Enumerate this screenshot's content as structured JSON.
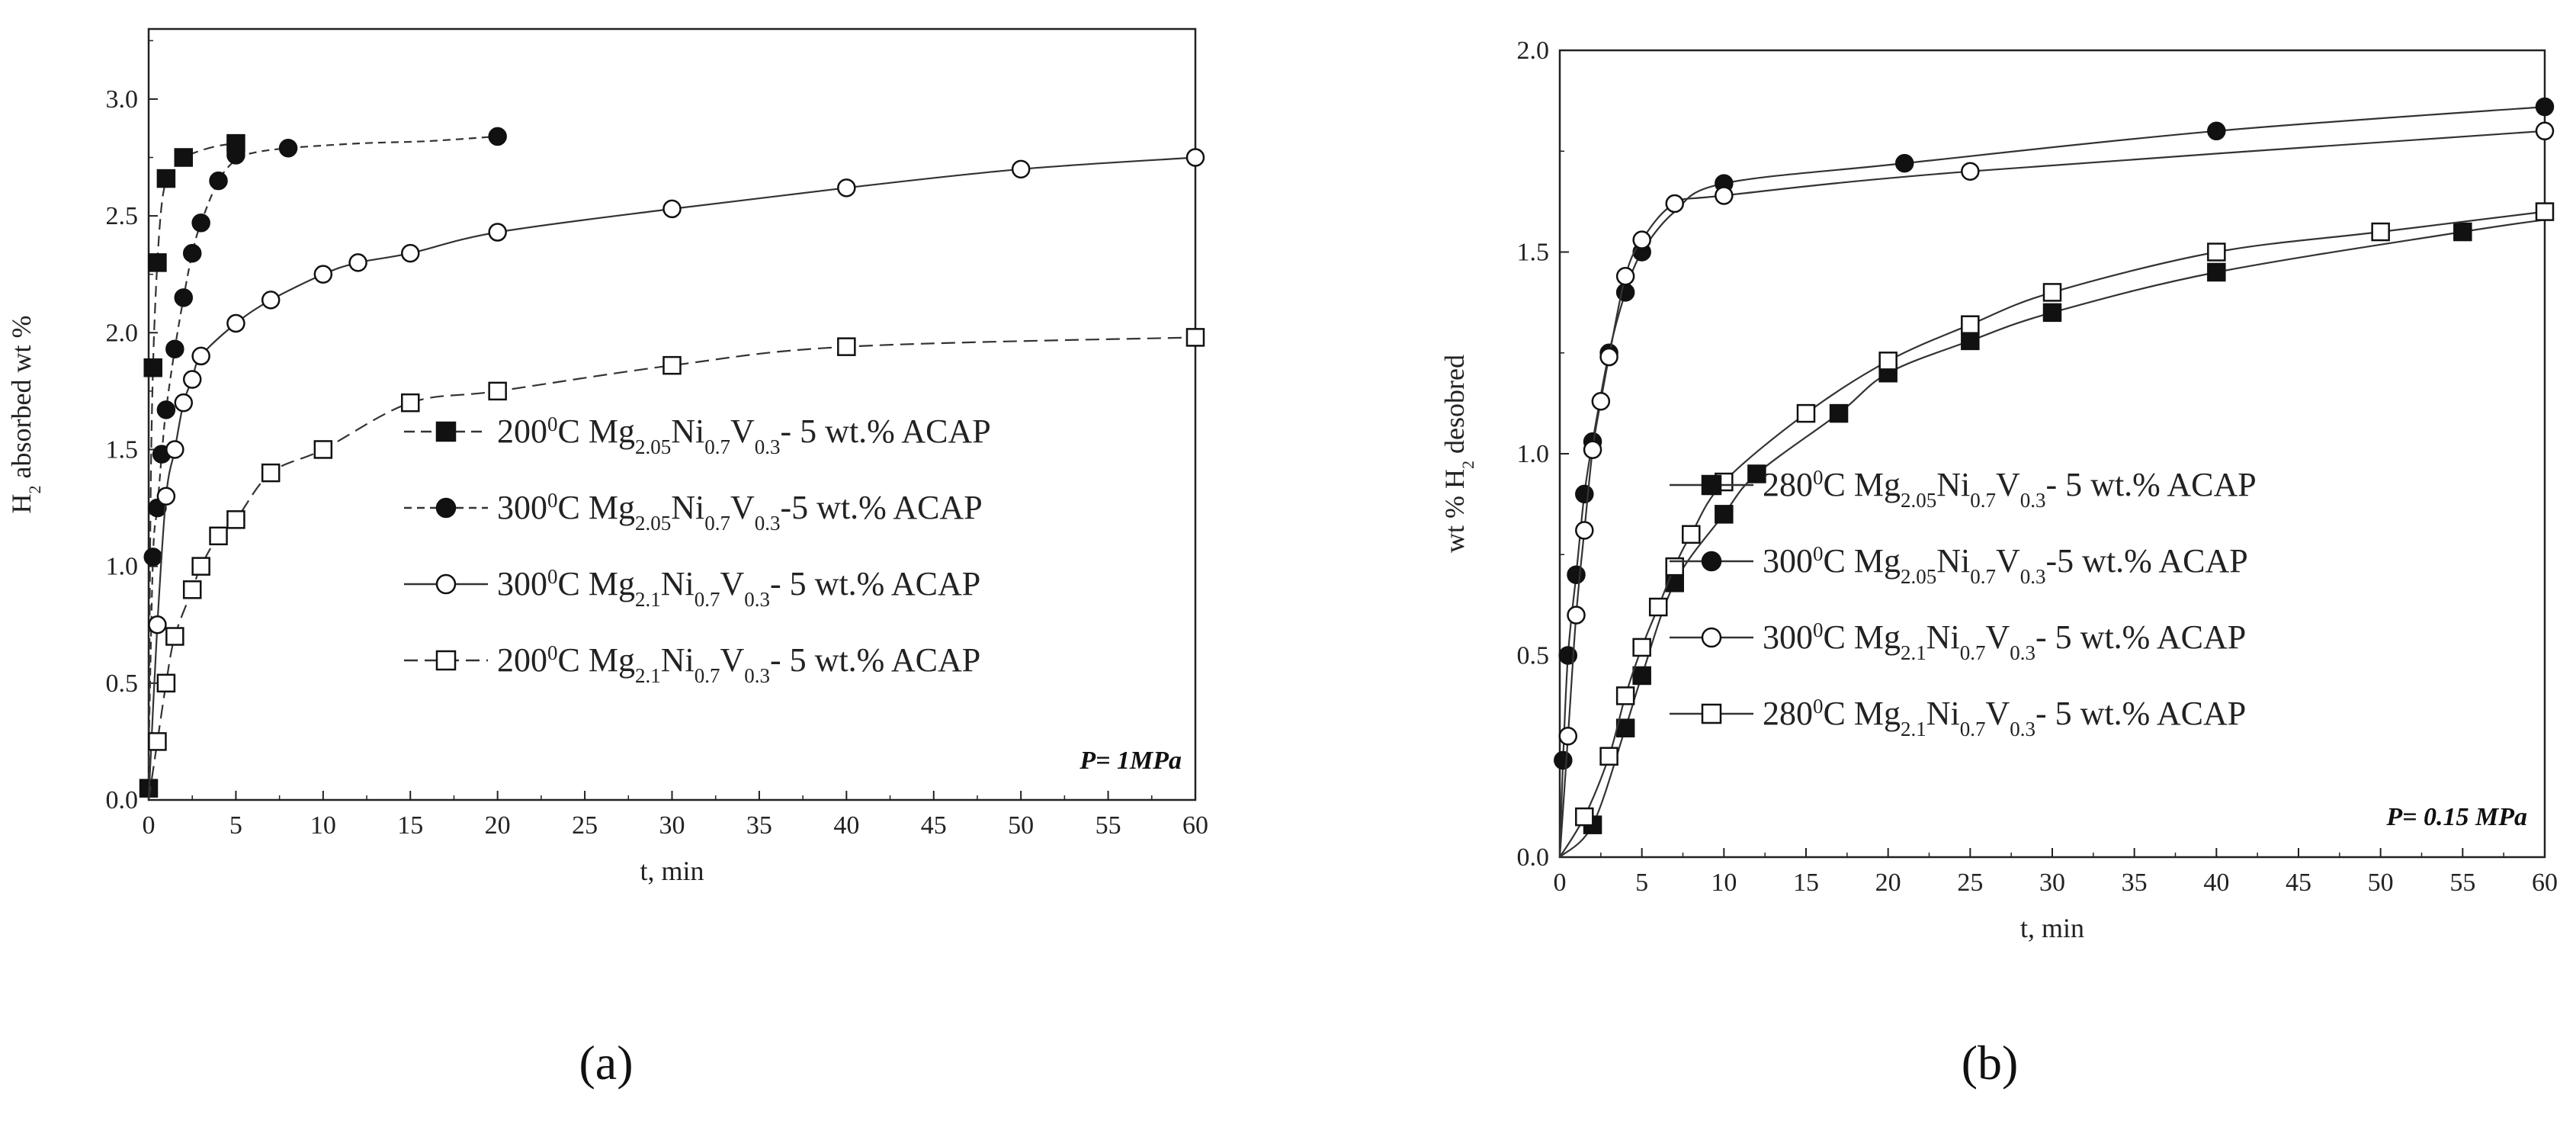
{
  "chart_data": [
    {
      "type": "line",
      "panel_label": "(a)",
      "xlabel": "t, min",
      "ylabel": "H2 absorbed wt %",
      "ylabel_parts": [
        {
          "t": "H",
          "s": "n"
        },
        {
          "t": "2",
          "s": "sub"
        },
        {
          "t": " absorbed wt %",
          "s": "n"
        }
      ],
      "xlim": [
        0,
        60
      ],
      "ylim": [
        0,
        3.3
      ],
      "xticks": [
        "0",
        "5",
        "10",
        "15",
        "20",
        "25",
        "30",
        "35",
        "40",
        "45",
        "50",
        "55",
        "60"
      ],
      "yticks": [
        "0.0",
        "0.5",
        "1.0",
        "1.5",
        "2.0",
        "2.5",
        "3.0"
      ],
      "annotation": "P= 1MPa",
      "legend_position": "center-right",
      "series": [
        {
          "name": "200⁰C Mg2.05Ni0.7V0.3- 5 wt.% ACAP",
          "label_parts": [
            {
              "t": "200",
              "s": "n"
            },
            {
              "t": "0",
              "s": "sup"
            },
            {
              "t": "C Mg",
              "s": "n"
            },
            {
              "t": "2.05",
              "s": "sub"
            },
            {
              "t": "Ni",
              "s": "n"
            },
            {
              "t": "0.7",
              "s": "sub"
            },
            {
              "t": "V",
              "s": "n"
            },
            {
              "t": "0.3",
              "s": "sub"
            },
            {
              "t": "- 5 wt.% ACAP",
              "s": "n"
            }
          ],
          "marker": "filled-square",
          "dash": "14,8",
          "x": [
            0,
            0.25,
            0.5,
            1,
            2,
            5
          ],
          "y": [
            0.05,
            1.85,
            2.3,
            2.66,
            2.75,
            2.81
          ],
          "curve_x": [
            0,
            0.1,
            0.25,
            0.5,
            0.8,
            1.2,
            1.6,
            2,
            3,
            4,
            5
          ],
          "curve_y": [
            0,
            1.2,
            1.85,
            2.3,
            2.58,
            2.68,
            2.72,
            2.75,
            2.78,
            2.8,
            2.81
          ]
        },
        {
          "name": "300⁰C Mg2.05Ni0.7V0.3-5 wt.% ACAP",
          "label_parts": [
            {
              "t": "300",
              "s": "n"
            },
            {
              "t": "0",
              "s": "sup"
            },
            {
              "t": "C Mg",
              "s": "n"
            },
            {
              "t": "2.05",
              "s": "sub"
            },
            {
              "t": "Ni",
              "s": "n"
            },
            {
              "t": "0.7",
              "s": "sub"
            },
            {
              "t": "V",
              "s": "n"
            },
            {
              "t": "0.3",
              "s": "sub"
            },
            {
              "t": "-5 wt.% ACAP",
              "s": "n"
            }
          ],
          "marker": "filled-circle",
          "dash": "10,7",
          "x": [
            0.25,
            0.5,
            0.75,
            1,
            1.5,
            2,
            2.5,
            3,
            4,
            5,
            8,
            20
          ],
          "y": [
            1.04,
            1.25,
            1.48,
            1.67,
            1.93,
            2.15,
            2.34,
            2.47,
            2.65,
            2.76,
            2.79,
            2.84
          ],
          "curve_x": [
            0,
            0.25,
            0.5,
            0.75,
            1,
            1.5,
            2,
            2.5,
            3,
            4,
            5,
            6,
            8,
            12,
            16,
            20
          ],
          "curve_y": [
            0.2,
            1.04,
            1.25,
            1.48,
            1.67,
            1.93,
            2.15,
            2.34,
            2.47,
            2.65,
            2.74,
            2.77,
            2.79,
            2.81,
            2.82,
            2.84
          ]
        },
        {
          "name": "300⁰C Mg2.1Ni0.7V0.3- 5 wt.% ACAP",
          "label_parts": [
            {
              "t": "300",
              "s": "n"
            },
            {
              "t": "0",
              "s": "sup"
            },
            {
              "t": "C Mg",
              "s": "n"
            },
            {
              "t": "2.1",
              "s": "sub"
            },
            {
              "t": "Ni",
              "s": "n"
            },
            {
              "t": "0.7",
              "s": "sub"
            },
            {
              "t": "V",
              "s": "n"
            },
            {
              "t": "0.3",
              "s": "sub"
            },
            {
              "t": "- 5 wt.% ACAP",
              "s": "n"
            }
          ],
          "marker": "open-circle",
          "dash": "",
          "x": [
            0.5,
            1,
            1.5,
            2,
            2.5,
            3,
            5,
            7,
            10,
            12,
            15,
            20,
            30,
            40,
            50,
            60
          ],
          "y": [
            0.75,
            1.3,
            1.5,
            1.7,
            1.8,
            1.9,
            2.04,
            2.14,
            2.25,
            2.3,
            2.34,
            2.43,
            2.53,
            2.62,
            2.7,
            2.75
          ],
          "curve_x": [
            0,
            0.5,
            1,
            1.5,
            2,
            2.5,
            3,
            5,
            7,
            10,
            12,
            15,
            20,
            30,
            40,
            50,
            60
          ],
          "curve_y": [
            0,
            0.75,
            1.3,
            1.5,
            1.7,
            1.8,
            1.9,
            2.04,
            2.14,
            2.25,
            2.3,
            2.34,
            2.43,
            2.53,
            2.62,
            2.7,
            2.75
          ]
        },
        {
          "name": "200⁰C Mg2.1Ni0.7V0.3- 5 wt.% ACAP",
          "label_parts": [
            {
              "t": "200",
              "s": "n"
            },
            {
              "t": "0",
              "s": "sup"
            },
            {
              "t": "C Mg",
              "s": "n"
            },
            {
              "t": "2.1",
              "s": "sub"
            },
            {
              "t": "Ni",
              "s": "n"
            },
            {
              "t": "0.7",
              "s": "sub"
            },
            {
              "t": "V",
              "s": "n"
            },
            {
              "t": "0.3",
              "s": "sub"
            },
            {
              "t": "- 5 wt.% ACAP",
              "s": "n"
            }
          ],
          "marker": "open-square",
          "dash": "18,9",
          "x": [
            0.5,
            1,
            1.5,
            2.5,
            3,
            4,
            5,
            7,
            10,
            15,
            20,
            30,
            40,
            60
          ],
          "y": [
            0.25,
            0.5,
            0.7,
            0.9,
            1.0,
            1.13,
            1.2,
            1.4,
            1.5,
            1.7,
            1.75,
            1.86,
            1.94,
            1.98
          ],
          "curve_x": [
            0,
            0.5,
            1,
            1.5,
            2.5,
            3,
            4,
            5,
            7,
            10,
            15,
            20,
            30,
            40,
            60
          ],
          "curve_y": [
            0,
            0.25,
            0.5,
            0.7,
            0.9,
            1.0,
            1.13,
            1.2,
            1.4,
            1.5,
            1.7,
            1.75,
            1.86,
            1.94,
            1.98
          ]
        }
      ]
    },
    {
      "type": "line",
      "panel_label": "(b)",
      "xlabel": "t, min",
      "ylabel": "wt % H2 desobred",
      "ylabel_parts": [
        {
          "t": "wt % H",
          "s": "n"
        },
        {
          "t": "2",
          "s": "sub"
        },
        {
          "t": " desobred",
          "s": "n"
        }
      ],
      "xlim": [
        0,
        60
      ],
      "ylim": [
        0,
        2.0
      ],
      "xticks": [
        "0",
        "5",
        "10",
        "15",
        "20",
        "25",
        "30",
        "35",
        "40",
        "45",
        "50",
        "55",
        "60"
      ],
      "yticks": [
        "0.0",
        "0.5",
        "1.0",
        "1.5",
        "2.0"
      ],
      "annotation": "P= 0.15 MPa",
      "legend_position": "center-right",
      "series": [
        {
          "name": "280⁰C Mg2.05Ni0.7V0.3- 5 wt.% ACAP",
          "label_parts": [
            {
              "t": "280",
              "s": "n"
            },
            {
              "t": "0",
              "s": "sup"
            },
            {
              "t": "C Mg",
              "s": "n"
            },
            {
              "t": "2.05",
              "s": "sub"
            },
            {
              "t": "Ni",
              "s": "n"
            },
            {
              "t": "0.7",
              "s": "sub"
            },
            {
              "t": "V",
              "s": "n"
            },
            {
              "t": "0.3",
              "s": "sub"
            },
            {
              "t": "- 5 wt.% ACAP",
              "s": "n"
            }
          ],
          "marker": "filled-square",
          "dash": "",
          "x": [
            2,
            4,
            5,
            7,
            10,
            12,
            17,
            20,
            25,
            30,
            40,
            55
          ],
          "y": [
            0.08,
            0.32,
            0.45,
            0.68,
            0.85,
            0.95,
            1.1,
            1.2,
            1.28,
            1.35,
            1.45,
            1.55
          ],
          "curve_x": [
            0,
            2,
            4,
            5,
            7,
            10,
            12,
            17,
            20,
            25,
            30,
            40,
            55,
            60
          ],
          "curve_y": [
            0,
            0.08,
            0.32,
            0.45,
            0.68,
            0.85,
            0.95,
            1.1,
            1.2,
            1.28,
            1.35,
            1.45,
            1.55,
            1.58
          ]
        },
        {
          "name": "300⁰C Mg2.05Ni0.7V0.3-5 wt.% ACAP",
          "label_parts": [
            {
              "t": "300",
              "s": "n"
            },
            {
              "t": "0",
              "s": "sup"
            },
            {
              "t": "C Mg",
              "s": "n"
            },
            {
              "t": "2.05",
              "s": "sub"
            },
            {
              "t": "Ni",
              "s": "n"
            },
            {
              "t": "0.7",
              "s": "sub"
            },
            {
              "t": "V",
              "s": "n"
            },
            {
              "t": "0.3",
              "s": "sub"
            },
            {
              "t": "-5 wt.% ACAP",
              "s": "n"
            }
          ],
          "marker": "filled-circle",
          "dash": "",
          "x": [
            0.2,
            0.5,
            1,
            1.5,
            2,
            3,
            4,
            5,
            10,
            21,
            40,
            60
          ],
          "y": [
            0.24,
            0.5,
            0.7,
            0.9,
            1.03,
            1.25,
            1.4,
            1.5,
            1.67,
            1.72,
            1.8,
            1.86
          ],
          "curve_x": [
            0,
            0.2,
            0.5,
            1,
            1.5,
            2,
            3,
            4,
            5,
            7,
            10,
            21,
            40,
            60
          ],
          "curve_y": [
            0,
            0.24,
            0.5,
            0.7,
            0.9,
            1.03,
            1.25,
            1.4,
            1.5,
            1.6,
            1.67,
            1.72,
            1.8,
            1.86
          ]
        },
        {
          "name": "300⁰C Mg2.1Ni0.7V0.3- 5 wt.% ACAP",
          "label_parts": [
            {
              "t": "300",
              "s": "n"
            },
            {
              "t": "0",
              "s": "sup"
            },
            {
              "t": "C Mg",
              "s": "n"
            },
            {
              "t": "2.1",
              "s": "sub"
            },
            {
              "t": "Ni",
              "s": "n"
            },
            {
              "t": "0.7",
              "s": "sub"
            },
            {
              "t": "V",
              "s": "n"
            },
            {
              "t": "0.3",
              "s": "sub"
            },
            {
              "t": "- 5 wt.% ACAP",
              "s": "n"
            }
          ],
          "marker": "open-circle",
          "dash": "",
          "x": [
            0.5,
            1,
            1.5,
            2,
            2.5,
            3,
            4,
            5,
            7,
            10,
            25,
            60
          ],
          "y": [
            0.3,
            0.6,
            0.81,
            1.01,
            1.13,
            1.24,
            1.44,
            1.53,
            1.62,
            1.64,
            1.7,
            1.8
          ],
          "curve_x": [
            0,
            0.5,
            1,
            1.5,
            2,
            2.5,
            3,
            4,
            5,
            7,
            10,
            25,
            60
          ],
          "curve_y": [
            0,
            0.3,
            0.6,
            0.81,
            1.01,
            1.13,
            1.24,
            1.44,
            1.53,
            1.62,
            1.64,
            1.7,
            1.8
          ]
        },
        {
          "name": "280⁰C Mg2.1Ni0.7V0.3- 5 wt.% ACAP",
          "label_parts": [
            {
              "t": "280",
              "s": "n"
            },
            {
              "t": "0",
              "s": "sup"
            },
            {
              "t": "C Mg",
              "s": "n"
            },
            {
              "t": "2.1",
              "s": "sub"
            },
            {
              "t": "Ni",
              "s": "n"
            },
            {
              "t": "0.7",
              "s": "sub"
            },
            {
              "t": "V",
              "s": "n"
            },
            {
              "t": "0.3",
              "s": "sub"
            },
            {
              "t": "- 5 wt.% ACAP",
              "s": "n"
            }
          ],
          "marker": "open-square",
          "dash": "",
          "x": [
            1.5,
            3,
            4,
            5,
            6,
            7,
            8,
            10,
            15,
            20,
            25,
            30,
            40,
            50,
            60
          ],
          "y": [
            0.1,
            0.25,
            0.4,
            0.52,
            0.62,
            0.72,
            0.8,
            0.93,
            1.1,
            1.23,
            1.32,
            1.4,
            1.5,
            1.55,
            1.6
          ],
          "curve_x": [
            0,
            1.5,
            3,
            4,
            5,
            6,
            7,
            8,
            10,
            15,
            20,
            25,
            30,
            40,
            50,
            60
          ],
          "curve_y": [
            0,
            0.1,
            0.25,
            0.4,
            0.52,
            0.62,
            0.72,
            0.8,
            0.93,
            1.1,
            1.23,
            1.32,
            1.4,
            1.5,
            1.55,
            1.6
          ]
        }
      ]
    }
  ]
}
